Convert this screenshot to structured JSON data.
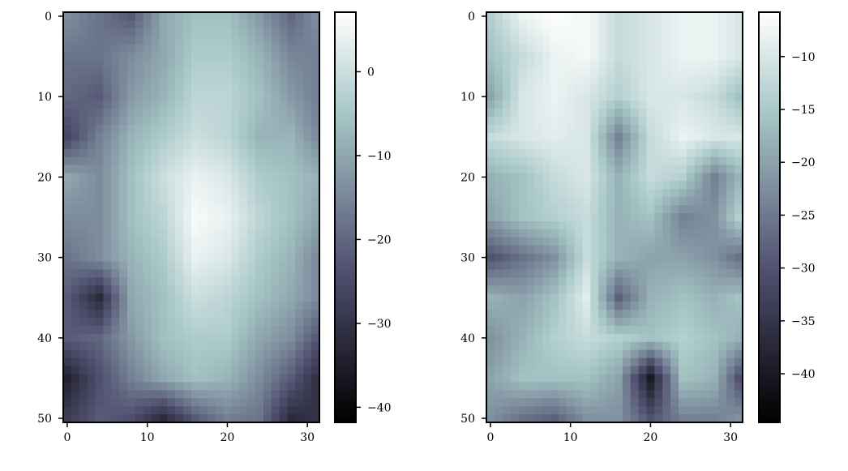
{
  "chart_data": [
    {
      "type": "heatmap",
      "colormap": "bone",
      "shape": [
        51,
        32
      ],
      "sample_rows": [
        0,
        5,
        10,
        15,
        20,
        25,
        30,
        35,
        40,
        45,
        50
      ],
      "sample_cols": [
        0,
        4,
        8,
        12,
        16,
        20,
        24,
        28,
        31
      ],
      "values_sampled": [
        [
          -14,
          -18,
          -22,
          -10,
          -6,
          -6,
          -12,
          -20,
          -14
        ],
        [
          -18,
          -18,
          -14,
          -10,
          -4,
          -4,
          -8,
          -15,
          -16
        ],
        [
          -20,
          -22,
          -12,
          -8,
          -2,
          -2,
          -6,
          -12,
          -16
        ],
        [
          -26,
          -16,
          -8,
          -4,
          0,
          -2,
          -8,
          -8,
          -14
        ],
        [
          -10,
          -14,
          -6,
          0,
          4,
          2,
          -4,
          -6,
          -8
        ],
        [
          -14,
          -14,
          -6,
          -2,
          6,
          4,
          -2,
          -6,
          -10
        ],
        [
          -18,
          -14,
          -8,
          -4,
          4,
          2,
          -4,
          -8,
          -14
        ],
        [
          -22,
          -32,
          -10,
          -6,
          0,
          -2,
          -6,
          -10,
          -14
        ],
        [
          -22,
          -20,
          -12,
          -6,
          -4,
          -4,
          -10,
          -14,
          -22
        ],
        [
          -34,
          -24,
          -16,
          -10,
          -6,
          -8,
          -14,
          -22,
          -30
        ],
        [
          -28,
          -22,
          -24,
          -32,
          -22,
          -16,
          -18,
          -32,
          -30
        ]
      ],
      "xticks": [
        "0",
        "10",
        "20",
        "30"
      ],
      "yticks": [
        "0",
        "10",
        "20",
        "30",
        "40",
        "50"
      ],
      "colorbar": {
        "range": [
          -41.8,
          7.1
        ],
        "ticks": [
          0,
          -10,
          -20,
          -30,
          -40
        ],
        "tick_labels": [
          "0",
          "−10",
          "−20",
          "−30",
          "−40"
        ]
      }
    },
    {
      "type": "heatmap",
      "colormap": "bone",
      "shape": [
        51,
        32
      ],
      "sample_rows": [
        0,
        5,
        10,
        15,
        20,
        25,
        30,
        35,
        40,
        45,
        50
      ],
      "sample_cols": [
        0,
        4,
        8,
        12,
        16,
        20,
        24,
        28,
        31
      ],
      "values_sampled": [
        [
          -14,
          -8,
          -6,
          -7,
          -12,
          -10,
          -8,
          -8,
          -10
        ],
        [
          -16,
          -12,
          -8,
          -7,
          -12,
          -10,
          -8,
          -8,
          -10
        ],
        [
          -20,
          -10,
          -8,
          -10,
          -14,
          -10,
          -10,
          -12,
          -16
        ],
        [
          -12,
          -10,
          -9,
          -10,
          -24,
          -12,
          -8,
          -10,
          -10
        ],
        [
          -18,
          -16,
          -12,
          -10,
          -18,
          -12,
          -14,
          -24,
          -18
        ],
        [
          -20,
          -16,
          -14,
          -12,
          -18,
          -16,
          -24,
          -22,
          -14
        ],
        [
          -30,
          -26,
          -22,
          -12,
          -18,
          -20,
          -20,
          -22,
          -26
        ],
        [
          -18,
          -20,
          -16,
          -9,
          -28,
          -18,
          -16,
          -18,
          -16
        ],
        [
          -22,
          -18,
          -14,
          -12,
          -14,
          -16,
          -14,
          -16,
          -18
        ],
        [
          -20,
          -16,
          -16,
          -16,
          -20,
          -40,
          -16,
          -18,
          -30
        ],
        [
          -22,
          -26,
          -28,
          -22,
          -22,
          -30,
          -24,
          -24,
          -22
        ]
      ],
      "xticks": [
        "0",
        "10",
        "20",
        "30"
      ],
      "yticks": [
        "0",
        "10",
        "20",
        "30",
        "40",
        "50"
      ],
      "colorbar": {
        "range": [
          -44.6,
          -5.8
        ],
        "ticks": [
          -10,
          -15,
          -20,
          -25,
          -30,
          -35,
          -40
        ],
        "tick_labels": [
          "−10",
          "−15",
          "−20",
          "−25",
          "−30",
          "−35",
          "−40"
        ]
      }
    }
  ]
}
